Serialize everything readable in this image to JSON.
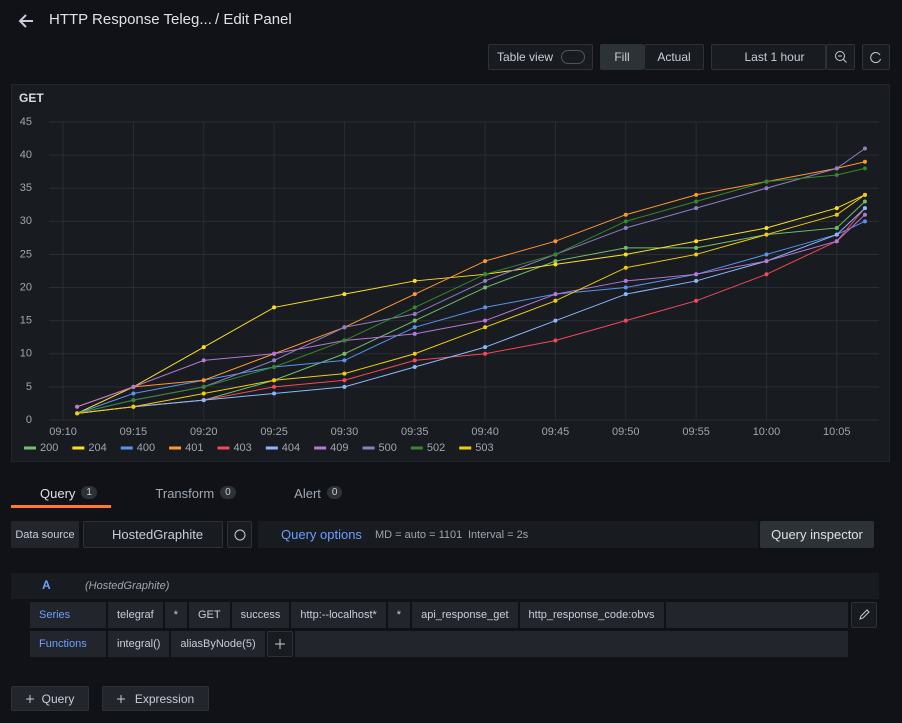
{
  "ui": {
    "title": "HTTP Response Teleg...",
    "subtitle": "/ Edit Panel",
    "table_view": "Table view",
    "fill": "Fill",
    "actual": "Actual",
    "time_range": "Last 1 hour",
    "tabs": [
      {
        "label": "Query",
        "count": 1
      },
      {
        "label": "Transform",
        "count": 0
      },
      {
        "label": "Alert",
        "count": 0
      }
    ],
    "data_source_label": "Data source",
    "data_source": "HostedGraphite",
    "query_options": "Query options",
    "md": "MD = auto = 1101",
    "interval": "Interval = 2s",
    "query_inspector": "Query inspector",
    "query_letter": "A",
    "query_source": "(HostedGraphite)",
    "series_label": "Series",
    "series_segments": [
      "telegraf",
      "*",
      "GET",
      "success",
      "http:--localhost*",
      "*",
      "api_response_get",
      "http_response_code:obvs"
    ],
    "functions_label": "Functions",
    "functions": [
      "integral()",
      "aliasByNode(5)"
    ],
    "add_query": "Query",
    "add_expression": "Expression"
  },
  "chart_data": {
    "type": "line",
    "title": "GET",
    "x": [
      "09:11",
      "09:15",
      "09:20",
      "09:25",
      "09:30",
      "09:35",
      "09:40",
      "09:45",
      "09:50",
      "09:55",
      "10:00",
      "10:05",
      "10:07"
    ],
    "xlim": [
      "09:09",
      "10:08"
    ],
    "xticks": [
      "09:10",
      "09:15",
      "09:20",
      "09:25",
      "09:30",
      "09:35",
      "09:40",
      "09:45",
      "09:50",
      "09:55",
      "10:00",
      "10:05"
    ],
    "ylim": [
      0,
      45
    ],
    "yticks": [
      0,
      5,
      10,
      15,
      20,
      25,
      30,
      35,
      40,
      45
    ],
    "grid": true,
    "series": [
      {
        "name": "200",
        "color": "#73bf69",
        "values": [
          1,
          2,
          3,
          6,
          10,
          15,
          20,
          24,
          26,
          26,
          28,
          29,
          33
        ]
      },
      {
        "name": "204",
        "color": "#fade2a",
        "values": [
          1,
          5,
          11,
          17,
          19,
          21,
          22,
          23.5,
          25,
          27,
          29,
          32,
          34
        ]
      },
      {
        "name": "400",
        "color": "#5794f2",
        "values": [
          1,
          4,
          6,
          8,
          9,
          14,
          17,
          19,
          20,
          22,
          25,
          28,
          30
        ]
      },
      {
        "name": "401",
        "color": "#ff9830",
        "values": [
          2,
          5,
          6,
          10,
          14,
          19,
          24,
          27,
          31,
          34,
          36,
          38,
          39
        ]
      },
      {
        "name": "403",
        "color": "#f2495c",
        "values": [
          1,
          2,
          3,
          5,
          6,
          9,
          10,
          12,
          15,
          18,
          22,
          27,
          32
        ]
      },
      {
        "name": "404",
        "color": "#8ab8ff",
        "values": [
          1,
          2,
          3,
          4,
          5,
          8,
          11,
          15,
          19,
          21,
          24,
          28,
          32
        ]
      },
      {
        "name": "409",
        "color": "#b877d9",
        "values": [
          2,
          5,
          9,
          10,
          12,
          13,
          15,
          19,
          21,
          22,
          24,
          27,
          31
        ]
      },
      {
        "name": "500",
        "color": "#8f7fc4",
        "values": [
          1,
          3,
          5,
          9,
          14,
          16,
          21,
          25,
          29,
          32,
          35,
          38,
          41
        ]
      },
      {
        "name": "502",
        "color": "#37872d",
        "values": [
          1,
          3,
          5,
          8,
          12,
          17,
          22,
          25,
          30,
          33,
          36,
          37,
          38
        ]
      },
      {
        "name": "503",
        "color": "#f2cc0c",
        "values": [
          1,
          2,
          4,
          6,
          7,
          10,
          14,
          18,
          23,
          25,
          28,
          31,
          34
        ]
      }
    ]
  }
}
